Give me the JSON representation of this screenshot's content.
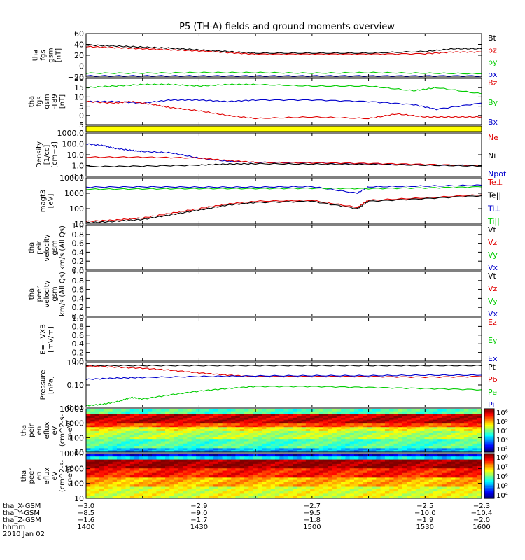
{
  "title": "P5 (TH-A) fields and ground moments overview",
  "colors": {
    "black": "#000000",
    "red": "#e00000",
    "green": "#00cc00",
    "blue": "#0000cc",
    "yellow": "#ffff00"
  },
  "chart_data": [
    {
      "type": "line",
      "ylabel": [
        "tha",
        "fgs",
        "gsm",
        "[nT]"
      ],
      "yticks": [
        "60",
        "40",
        "20",
        "0",
        "−20"
      ],
      "ylim": [
        -20,
        60
      ],
      "legend": [
        "Bt",
        "bz",
        "by",
        "bx"
      ],
      "legend_colors": [
        "black",
        "red",
        "green",
        "blue"
      ],
      "series": [
        {
          "color": "black",
          "x": [
            -3.0,
            -2.95,
            -2.9,
            -2.85,
            -2.8,
            -2.75,
            -2.7,
            -2.6,
            -2.5,
            -2.4,
            -2.35,
            -2.3
          ],
          "values": [
            39,
            37,
            35,
            33,
            30,
            27,
            24,
            24,
            24,
            27,
            32,
            32
          ]
        },
        {
          "color": "red",
          "x": [
            -3.0,
            -2.95,
            -2.9,
            -2.85,
            -2.8,
            -2.75,
            -2.7,
            -2.6,
            -2.5,
            -2.4,
            -2.35,
            -2.3
          ],
          "values": [
            36,
            34,
            32,
            30,
            28,
            25,
            22,
            22,
            22,
            23,
            26,
            26
          ]
        },
        {
          "color": "green",
          "x": [
            -3.0,
            -2.9,
            -2.8,
            -2.7,
            -2.6,
            -2.5,
            -2.4,
            -2.3
          ],
          "values": [
            -13,
            -13,
            -12,
            -12,
            -13,
            -12,
            -13,
            -14
          ]
        },
        {
          "color": "blue",
          "x": [
            -3.0,
            -2.9,
            -2.8,
            -2.7,
            -2.6,
            -2.5,
            -2.4,
            -2.3
          ],
          "values": [
            -18,
            -18,
            -18,
            -18,
            -18,
            -18,
            -18,
            -18
          ]
        }
      ]
    },
    {
      "type": "line",
      "ylabel": [
        "tha",
        "fgs",
        "gsm",
        "-T89",
        "[nT]"
      ],
      "yticks": [
        "20",
        "15",
        "10",
        "5",
        "0",
        "−5"
      ],
      "ylim": [
        -8,
        22
      ],
      "legend": [
        "Bz",
        "By",
        "Bx"
      ],
      "legend_colors": [
        "red",
        "green",
        "blue"
      ],
      "series": [
        {
          "color": "green",
          "x": [
            -3.0,
            -2.95,
            -2.9,
            -2.85,
            -2.8,
            -2.75,
            -2.7,
            -2.6,
            -2.5,
            -2.42,
            -2.38,
            -2.3
          ],
          "values": [
            16,
            17,
            18,
            18,
            17,
            18,
            18,
            17,
            17,
            14,
            16,
            12
          ]
        },
        {
          "color": "blue",
          "x": [
            -3.0,
            -2.95,
            -2.9,
            -2.85,
            -2.8,
            -2.75,
            -2.7,
            -2.6,
            -2.5,
            -2.42,
            -2.38,
            -2.3
          ],
          "values": [
            7,
            7,
            6,
            8,
            8,
            7,
            8,
            8,
            7,
            5,
            2,
            6
          ]
        },
        {
          "color": "red",
          "x": [
            -3.0,
            -2.95,
            -2.92,
            -2.88,
            -2.85,
            -2.8,
            -2.75,
            -2.7,
            -2.6,
            -2.5,
            -2.45,
            -2.4,
            -2.35,
            -2.3
          ],
          "values": [
            7,
            6,
            7,
            5,
            3,
            1,
            -2,
            -4,
            -3,
            -4,
            -1,
            -3,
            -3,
            -3
          ]
        }
      ]
    },
    {
      "type": "line",
      "scale": "log",
      "ylabel": [
        "Density",
        "[1/cc]",
        "[cm−3]"
      ],
      "yticks": [
        "1000.0",
        "100.0",
        "10.0",
        "1.0",
        "0.1"
      ],
      "ylim": [
        0.1,
        1000
      ],
      "legend": [
        "Ne",
        "Ni",
        "Npot"
      ],
      "legend_colors": [
        "red",
        "black",
        "blue"
      ],
      "series": [
        {
          "color": "blue",
          "x": [
            -3.0,
            -2.97,
            -2.95,
            -2.92,
            -2.9,
            -2.85,
            -2.8,
            -2.75,
            -2.7,
            -2.6,
            -2.5,
            -2.4,
            -2.3
          ],
          "values": [
            100,
            70,
            40,
            25,
            20,
            15,
            5,
            2.5,
            2,
            1.8,
            1.5,
            1.2,
            1.0
          ]
        },
        {
          "color": "red",
          "x": [
            -3.0,
            -2.9,
            -2.8,
            -2.75,
            -2.7,
            -2.6,
            -2.5,
            -2.4,
            -2.3
          ],
          "values": [
            6,
            6,
            5,
            3,
            2,
            1.8,
            1.6,
            1.3,
            1.0
          ]
        },
        {
          "color": "black",
          "x": [
            -3.0,
            -2.9,
            -2.8,
            -2.75,
            -2.7,
            -2.6,
            -2.5,
            -2.4,
            -2.3
          ],
          "values": [
            0.8,
            0.9,
            1.1,
            1.4,
            1.5,
            1.4,
            1.3,
            1.1,
            0.9
          ]
        }
      ]
    },
    {
      "type": "line",
      "scale": "log",
      "ylabel": [
        "magt3",
        "[eV]"
      ],
      "yticks": [
        "10000",
        "1000",
        "100",
        "10"
      ],
      "ylim": [
        10,
        10000
      ],
      "legend": [
        "Te⊥",
        "Te||",
        "Ti⊥",
        "Ti||"
      ],
      "legend_colors": [
        "red",
        "black",
        "blue",
        "green"
      ],
      "series": [
        {
          "color": "blue",
          "x": [
            -3.0,
            -2.9,
            -2.8,
            -2.7,
            -2.6,
            -2.52,
            -2.5,
            -2.4,
            -2.3
          ],
          "values": [
            2500,
            2600,
            2500,
            2500,
            2700,
            1000,
            2600,
            2900,
            3300
          ]
        },
        {
          "color": "green",
          "x": [
            -3.0,
            -2.9,
            -2.8,
            -2.7,
            -2.6,
            -2.5,
            -2.4,
            -2.3
          ],
          "values": [
            1800,
            1900,
            2000,
            2000,
            2100,
            2000,
            2200,
            2600
          ]
        },
        {
          "color": "red",
          "x": [
            -3.0,
            -2.95,
            -2.9,
            -2.85,
            -2.8,
            -2.75,
            -2.7,
            -2.6,
            -2.52,
            -2.5,
            -2.4,
            -2.3
          ],
          "values": [
            15,
            18,
            25,
            50,
            100,
            200,
            300,
            350,
            120,
            350,
            500,
            800
          ]
        },
        {
          "color": "black",
          "x": [
            -3.0,
            -2.95,
            -2.9,
            -2.85,
            -2.8,
            -2.75,
            -2.7,
            -2.6,
            -2.52,
            -2.5,
            -2.4,
            -2.3
          ],
          "values": [
            12,
            15,
            20,
            40,
            80,
            170,
            250,
            300,
            100,
            300,
            450,
            700
          ]
        }
      ]
    },
    {
      "type": "line",
      "ylabel": [
        "tha",
        "peir",
        "velocity",
        "gsm",
        "km/s (All Qs)"
      ],
      "yticks": [
        "1.0",
        "0.8",
        "0.6",
        "0.4",
        "0.2",
        "0.0"
      ],
      "ylim": [
        0,
        1
      ],
      "legend": [
        "Vt",
        "Vz",
        "Vy",
        "Vx"
      ],
      "legend_colors": [
        "black",
        "red",
        "green",
        "blue"
      ],
      "series": []
    },
    {
      "type": "line",
      "ylabel": [
        "tha",
        "peer",
        "velocity",
        "gsm",
        "km/s (All Qs)"
      ],
      "yticks": [
        "1.0",
        "0.8",
        "0.6",
        "0.4",
        "0.2",
        "0.0"
      ],
      "ylim": [
        0,
        1
      ],
      "legend": [
        "Vt",
        "Vz",
        "Vy",
        "Vx"
      ],
      "legend_colors": [
        "black",
        "red",
        "green",
        "blue"
      ],
      "series": []
    },
    {
      "type": "line",
      "ylabel": [
        "E=−VXB",
        "[mV/m]"
      ],
      "yticks": [
        "1.0",
        "0.8",
        "0.6",
        "0.4",
        "0.2",
        "0.0"
      ],
      "ylim": [
        0,
        1
      ],
      "legend": [
        "Ez",
        "Ey",
        "Ex"
      ],
      "legend_colors": [
        "red",
        "green",
        "blue"
      ],
      "series": []
    },
    {
      "type": "line",
      "scale": "log",
      "ylabel": [
        "Pressure",
        "[nPa]"
      ],
      "yticks": [
        "1.00",
        "0.10",
        "0.01"
      ],
      "ylim": [
        0.01,
        1.4
      ],
      "legend": [
        "Pt",
        "Pb",
        "Pe",
        "Pi"
      ],
      "legend_colors": [
        "black",
        "red",
        "green",
        "blue"
      ],
      "series": [
        {
          "color": "black",
          "x": [
            -3.0,
            -2.9,
            -2.8,
            -2.7,
            -2.6,
            -2.5,
            -2.4,
            -2.3
          ],
          "values": [
            1.0,
            1.0,
            1.0,
            1.0,
            1.0,
            1.0,
            1.0,
            1.0
          ]
        },
        {
          "color": "red",
          "x": [
            -3.0,
            -2.95,
            -2.9,
            -2.85,
            -2.8,
            -2.75,
            -2.7,
            -2.6,
            -2.5,
            -2.4,
            -2.3
          ],
          "values": [
            0.95,
            0.85,
            0.75,
            0.6,
            0.45,
            0.35,
            0.3,
            0.3,
            0.3,
            0.28,
            0.3
          ]
        },
        {
          "color": "blue",
          "x": [
            -3.0,
            -2.95,
            -2.9,
            -2.8,
            -2.7,
            -2.6,
            -2.5,
            -2.4,
            -2.3
          ],
          "values": [
            0.22,
            0.25,
            0.27,
            0.3,
            0.32,
            0.33,
            0.33,
            0.35,
            0.35
          ]
        },
        {
          "color": "green",
          "x": [
            -3.0,
            -2.97,
            -2.94,
            -2.92,
            -2.9,
            -2.85,
            -2.8,
            -2.75,
            -2.7,
            -2.6,
            -2.5,
            -2.4,
            -2.3
          ],
          "values": [
            0.012,
            0.014,
            0.02,
            0.03,
            0.025,
            0.04,
            0.06,
            0.08,
            0.1,
            0.1,
            0.09,
            0.08,
            0.07
          ]
        }
      ]
    },
    {
      "type": "heatmap",
      "ylabel": [
        "tha",
        "peir",
        "en",
        "eflux",
        "eV",
        "(cm^2-s-",
        "sr-eV)"
      ],
      "yticks": [
        "10000",
        "1000",
        "100",
        "10"
      ],
      "ylim": [
        10,
        20000
      ],
      "colorbar": {
        "ticks": [
          "10⁶",
          "10⁵",
          "10⁴",
          "10³",
          "10²"
        ]
      },
      "description_rows": [
        {
          "range": [
            8000,
            20000
          ],
          "value": 0.45
        },
        {
          "range": [
            1500,
            8000
          ],
          "value": 0.93
        },
        {
          "range": [
            800,
            1500
          ],
          "value": 0.8
        },
        {
          "range": [
            400,
            800
          ],
          "value": 0.62
        },
        {
          "range": [
            100,
            400
          ],
          "value": 0.55
        },
        {
          "range": [
            20,
            100
          ],
          "value": 0.45
        },
        {
          "range": [
            10,
            20
          ],
          "value": 0.3
        }
      ]
    },
    {
      "type": "heatmap",
      "ylabel": [
        "tha",
        "peer",
        "en",
        "eflux",
        "eV",
        "(cm^2-s-",
        "sr-eV)"
      ],
      "yticks": [
        "10000",
        "1000",
        "100",
        "10"
      ],
      "ylim": [
        8,
        20000
      ],
      "colorbar": {
        "ticks": [
          "10⁸",
          "10⁷",
          "10⁶",
          "10⁵",
          "10⁴"
        ]
      },
      "description_rows": [
        {
          "range": [
            12000,
            20000
          ],
          "value": 0.1
        },
        {
          "range": [
            7000,
            12000
          ],
          "value": 0.35
        },
        {
          "range": [
            1500,
            7000
          ],
          "value": 0.97
        },
        {
          "range": [
            300,
            1500
          ],
          "value": 0.85
        },
        {
          "range": [
            60,
            300
          ],
          "value": 0.7
        },
        {
          "range": [
            8,
            60
          ],
          "value": 0.6
        }
      ]
    }
  ],
  "xaxis": {
    "xlim": [
      -3.0,
      -2.3
    ],
    "tick_positions": [
      -3.0,
      -2.9,
      -2.8,
      -2.7,
      -2.6,
      -2.5,
      -2.4,
      -2.3
    ],
    "label_positions": [
      -3.0,
      -2.8,
      -2.6,
      -2.4,
      -2.3
    ],
    "rows": [
      {
        "label": "tha_X-GSM",
        "values": [
          "−3.0",
          "−2.9",
          "−2.7",
          "−2.5",
          "−2.3"
        ]
      },
      {
        "label": "tha_Y-GSM",
        "values": [
          "−8.5",
          "−9.0",
          "−9.5",
          "−10.0",
          "−10.4"
        ]
      },
      {
        "label": "tha_Z-GSM",
        "values": [
          "−1.6",
          "−1.7",
          "−1.8",
          "−1.9",
          "−2.0"
        ]
      },
      {
        "label": "hhmm",
        "values": [
          "1400",
          "1430",
          "1500",
          "1530",
          "1600"
        ]
      }
    ],
    "date": "2010 Jan 02"
  }
}
